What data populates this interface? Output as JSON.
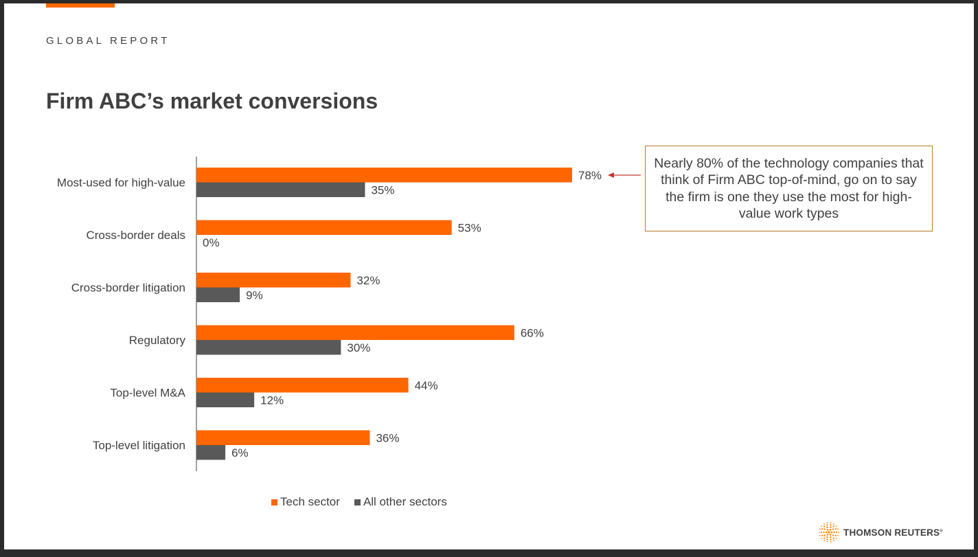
{
  "header": {
    "eyebrow": "GLOBAL REPORT",
    "title": "Firm ABC’s market conversions"
  },
  "colors": {
    "accent": "#ff6a00",
    "series_primary": "#ff6600",
    "series_secondary": "#595959",
    "text": "#404040",
    "callout_border": "#b47a2c"
  },
  "chart_data": {
    "type": "bar",
    "orientation": "horizontal",
    "categories": [
      "Most-used for high-value",
      "Cross-border deals",
      "Cross-border litigation",
      "Regulatory",
      "Top-level M&A",
      "Top-level litigation"
    ],
    "series": [
      {
        "name": "Tech sector",
        "values": [
          78,
          53,
          32,
          66,
          44,
          36
        ],
        "labels": [
          "78%",
          "53%",
          "32%",
          "66%",
          "44%",
          "36%"
        ],
        "color": "#ff6600"
      },
      {
        "name": "All other sectors",
        "values": [
          35,
          0,
          9,
          30,
          12,
          6
        ],
        "labels": [
          "35%",
          "0%",
          "9%",
          "30%",
          "12%",
          "6%"
        ],
        "color": "#595959"
      }
    ],
    "value_unit": "%",
    "xlim": [
      0,
      78
    ],
    "grid": false,
    "legend_position": "bottom",
    "title": "",
    "xlabel": "",
    "ylabel": ""
  },
  "callout": {
    "text": "Nearly 80% of the technology companies that think of Firm ABC top-of-mind, go on to say the firm is one they use the most for high-value work types"
  },
  "logo": {
    "name": "THOMSON REUTERS",
    "mark": "®"
  }
}
